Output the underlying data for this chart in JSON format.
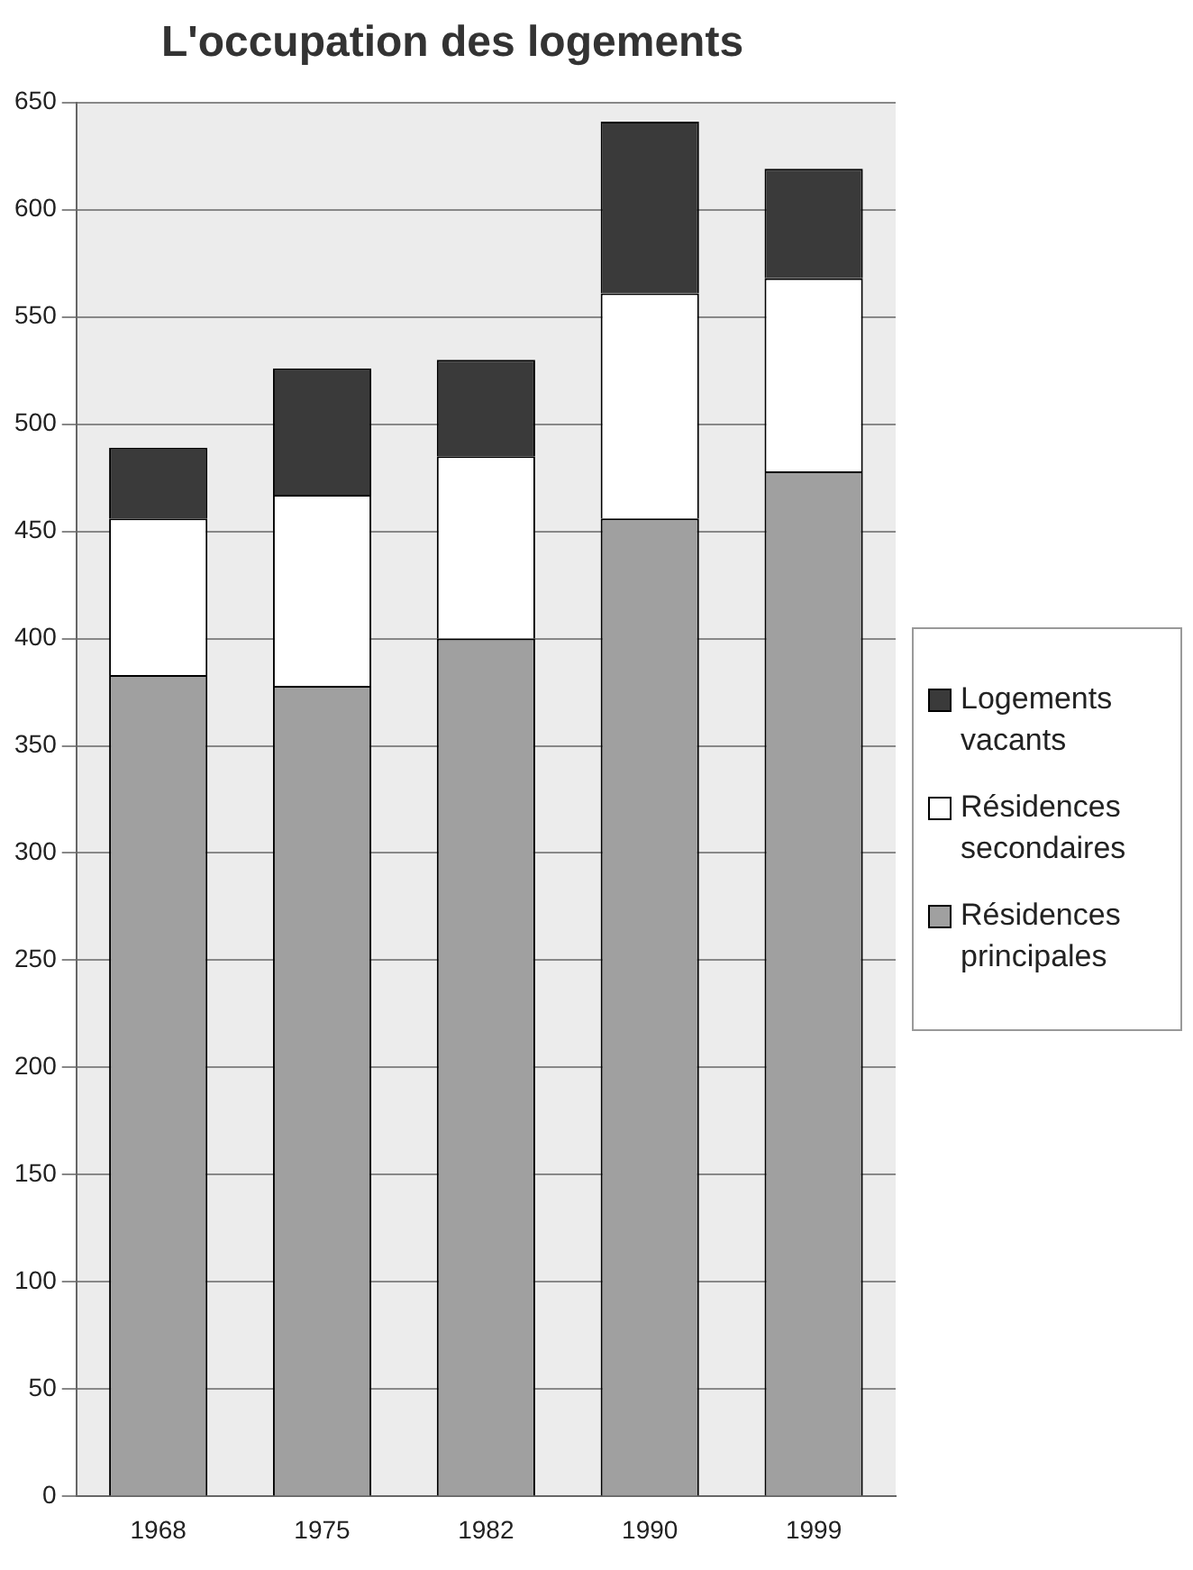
{
  "chart_data": {
    "type": "bar",
    "title": "L'occupation des logements",
    "categories": [
      "1968",
      "1975",
      "1982",
      "1990",
      "1999"
    ],
    "stacked": true,
    "series": [
      {
        "name": "Résidences principales",
        "color": "#a0a0a0",
        "values": [
          383,
          378,
          400,
          456,
          478
        ]
      },
      {
        "name": "Résidences secondaires",
        "color": "#ffffff",
        "values": [
          73,
          89,
          85,
          105,
          90
        ]
      },
      {
        "name": "Logements vacants",
        "color": "#3a3a3a",
        "values": [
          33,
          59,
          45,
          80,
          51
        ]
      }
    ],
    "ylim": [
      0,
      650
    ],
    "yticks": [
      0,
      50,
      100,
      150,
      200,
      250,
      300,
      350,
      400,
      450,
      500,
      550,
      600,
      650
    ],
    "grid": "y",
    "legend": "right"
  }
}
